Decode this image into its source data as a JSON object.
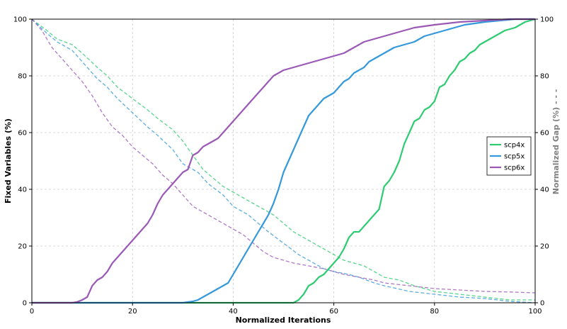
{
  "chart_data": {
    "type": "line",
    "xlabel": "Normalized Iterations",
    "ylabel_left": "Fixed Variables (%)",
    "ylabel_right": "Normalized Gap (%) - - -",
    "xlim": [
      0,
      100
    ],
    "ylim_left": [
      0,
      100
    ],
    "ylim_right": [
      0,
      100
    ],
    "x_ticks": [
      0,
      20,
      40,
      60,
      80,
      100
    ],
    "y_ticks": [
      0,
      20,
      40,
      60,
      80,
      100
    ],
    "grid": true,
    "legend_position": "center-right",
    "series": [
      {
        "name": "scp4x",
        "color": "#2ecc71",
        "fixed_variables": [
          [
            0,
            0
          ],
          [
            10,
            0
          ],
          [
            20,
            0
          ],
          [
            30,
            0
          ],
          [
            40,
            0
          ],
          [
            45,
            0
          ],
          [
            50,
            0
          ],
          [
            52,
            0
          ],
          [
            53,
            1
          ],
          [
            54,
            3
          ],
          [
            55,
            6
          ],
          [
            56,
            7
          ],
          [
            57,
            9
          ],
          [
            58,
            10
          ],
          [
            59,
            12
          ],
          [
            60,
            14
          ],
          [
            61,
            16
          ],
          [
            62,
            19
          ],
          [
            63,
            23
          ],
          [
            64,
            25
          ],
          [
            65,
            25
          ],
          [
            66,
            27
          ],
          [
            67,
            29
          ],
          [
            68,
            31
          ],
          [
            69,
            33
          ],
          [
            70,
            41
          ],
          [
            71,
            43
          ],
          [
            72,
            46
          ],
          [
            73,
            50
          ],
          [
            74,
            56
          ],
          [
            75,
            60
          ],
          [
            76,
            64
          ],
          [
            77,
            65
          ],
          [
            78,
            68
          ],
          [
            79,
            69
          ],
          [
            80,
            71
          ],
          [
            81,
            76
          ],
          [
            82,
            77
          ],
          [
            83,
            80
          ],
          [
            84,
            82
          ],
          [
            85,
            85
          ],
          [
            86,
            86
          ],
          [
            87,
            88
          ],
          [
            88,
            89
          ],
          [
            89,
            91
          ],
          [
            90,
            92
          ],
          [
            92,
            94
          ],
          [
            94,
            96
          ],
          [
            96,
            97
          ],
          [
            98,
            99
          ],
          [
            100,
            100
          ]
        ],
        "normalized_gap": [
          [
            0,
            100
          ],
          [
            3,
            96
          ],
          [
            5,
            93
          ],
          [
            8,
            91
          ],
          [
            10,
            88
          ],
          [
            13,
            83
          ],
          [
            15,
            80
          ],
          [
            17,
            76
          ],
          [
            20,
            72
          ],
          [
            23,
            68
          ],
          [
            25,
            65
          ],
          [
            28,
            61
          ],
          [
            30,
            57
          ],
          [
            32,
            52
          ],
          [
            34,
            47
          ],
          [
            36,
            44
          ],
          [
            38,
            41
          ],
          [
            40,
            39
          ],
          [
            42,
            37
          ],
          [
            44,
            35
          ],
          [
            46,
            33
          ],
          [
            48,
            31
          ],
          [
            50,
            28
          ],
          [
            52,
            25
          ],
          [
            55,
            22
          ],
          [
            58,
            19
          ],
          [
            60,
            17
          ],
          [
            62,
            15
          ],
          [
            64,
            14
          ],
          [
            66,
            13
          ],
          [
            68,
            11
          ],
          [
            70,
            9
          ],
          [
            73,
            8
          ],
          [
            76,
            6
          ],
          [
            80,
            4
          ],
          [
            85,
            3
          ],
          [
            90,
            2
          ],
          [
            95,
            1
          ],
          [
            100,
            1
          ]
        ]
      },
      {
        "name": "scp5x",
        "color": "#3498db",
        "fixed_variables": [
          [
            0,
            0
          ],
          [
            10,
            0
          ],
          [
            20,
            0
          ],
          [
            30,
            0
          ],
          [
            32,
            0.5
          ],
          [
            33,
            1
          ],
          [
            34,
            2
          ],
          [
            35,
            3
          ],
          [
            36,
            4
          ],
          [
            37,
            5
          ],
          [
            38,
            6
          ],
          [
            39,
            7
          ],
          [
            40,
            10
          ],
          [
            41,
            13
          ],
          [
            42,
            16
          ],
          [
            43,
            19
          ],
          [
            44,
            22
          ],
          [
            45,
            25
          ],
          [
            46,
            28
          ],
          [
            47,
            31
          ],
          [
            48,
            35
          ],
          [
            49,
            40
          ],
          [
            50,
            46
          ],
          [
            51,
            50
          ],
          [
            52,
            54
          ],
          [
            53,
            58
          ],
          [
            54,
            62
          ],
          [
            55,
            66
          ],
          [
            56,
            68
          ],
          [
            57,
            70
          ],
          [
            58,
            72
          ],
          [
            59,
            73
          ],
          [
            60,
            74
          ],
          [
            61,
            76
          ],
          [
            62,
            78
          ],
          [
            63,
            79
          ],
          [
            64,
            81
          ],
          [
            65,
            82
          ],
          [
            66,
            83
          ],
          [
            67,
            85
          ],
          [
            68,
            86
          ],
          [
            69,
            87
          ],
          [
            70,
            88
          ],
          [
            71,
            89
          ],
          [
            72,
            90
          ],
          [
            74,
            91
          ],
          [
            76,
            92
          ],
          [
            78,
            94
          ],
          [
            80,
            95
          ],
          [
            82,
            96
          ],
          [
            84,
            97
          ],
          [
            86,
            98
          ],
          [
            88,
            98.5
          ],
          [
            90,
            99
          ],
          [
            93,
            99.5
          ],
          [
            96,
            100
          ],
          [
            100,
            100
          ]
        ],
        "normalized_gap": [
          [
            0,
            100
          ],
          [
            3,
            95
          ],
          [
            5,
            92
          ],
          [
            8,
            89
          ],
          [
            10,
            85
          ],
          [
            13,
            79
          ],
          [
            15,
            76
          ],
          [
            17,
            72
          ],
          [
            20,
            67
          ],
          [
            23,
            62
          ],
          [
            25,
            59
          ],
          [
            28,
            54
          ],
          [
            30,
            49
          ],
          [
            33,
            46
          ],
          [
            35,
            42
          ],
          [
            38,
            38
          ],
          [
            40,
            34
          ],
          [
            43,
            31
          ],
          [
            45,
            28
          ],
          [
            47,
            25
          ],
          [
            50,
            21
          ],
          [
            53,
            17
          ],
          [
            55,
            15
          ],
          [
            58,
            12
          ],
          [
            60,
            11
          ],
          [
            63,
            10
          ],
          [
            65,
            9
          ],
          [
            68,
            7
          ],
          [
            70,
            6
          ],
          [
            75,
            4
          ],
          [
            80,
            3
          ],
          [
            85,
            2
          ],
          [
            90,
            1.5
          ],
          [
            95,
            0.5
          ],
          [
            100,
            0
          ]
        ]
      },
      {
        "name": "scp6x",
        "color": "#9b59b6",
        "fixed_variables": [
          [
            0,
            0
          ],
          [
            8,
            0
          ],
          [
            9,
            0.3
          ],
          [
            10,
            1
          ],
          [
            11,
            2
          ],
          [
            12,
            6
          ],
          [
            13,
            8
          ],
          [
            14,
            9
          ],
          [
            15,
            11
          ],
          [
            16,
            14
          ],
          [
            17,
            16
          ],
          [
            18,
            18
          ],
          [
            19,
            20
          ],
          [
            20,
            22
          ],
          [
            21,
            24
          ],
          [
            22,
            26
          ],
          [
            23,
            28
          ],
          [
            24,
            31
          ],
          [
            25,
            35
          ],
          [
            26,
            38
          ],
          [
            27,
            40
          ],
          [
            28,
            42
          ],
          [
            29,
            44
          ],
          [
            30,
            46
          ],
          [
            31,
            47
          ],
          [
            32,
            52
          ],
          [
            33,
            53
          ],
          [
            34,
            55
          ],
          [
            35,
            56
          ],
          [
            36,
            57
          ],
          [
            37,
            58
          ],
          [
            38,
            60
          ],
          [
            39,
            62
          ],
          [
            40,
            64
          ],
          [
            41,
            66
          ],
          [
            42,
            68
          ],
          [
            43,
            70
          ],
          [
            44,
            72
          ],
          [
            45,
            74
          ],
          [
            46,
            76
          ],
          [
            47,
            78
          ],
          [
            48,
            80
          ],
          [
            49,
            81
          ],
          [
            50,
            82
          ],
          [
            52,
            83
          ],
          [
            54,
            84
          ],
          [
            56,
            85
          ],
          [
            58,
            86
          ],
          [
            60,
            87
          ],
          [
            62,
            88
          ],
          [
            64,
            90
          ],
          [
            66,
            92
          ],
          [
            68,
            93
          ],
          [
            70,
            94
          ],
          [
            72,
            95
          ],
          [
            74,
            96
          ],
          [
            76,
            97
          ],
          [
            80,
            98
          ],
          [
            85,
            99
          ],
          [
            90,
            99.5
          ],
          [
            95,
            100
          ],
          [
            100,
            100
          ]
        ],
        "normalized_gap": [
          [
            0,
            100
          ],
          [
            2,
            96
          ],
          [
            4,
            90
          ],
          [
            6,
            86
          ],
          [
            8,
            82
          ],
          [
            10,
            78
          ],
          [
            12,
            73
          ],
          [
            14,
            67
          ],
          [
            16,
            62
          ],
          [
            18,
            59
          ],
          [
            20,
            55
          ],
          [
            22,
            52
          ],
          [
            24,
            49
          ],
          [
            26,
            45
          ],
          [
            28,
            42
          ],
          [
            30,
            38
          ],
          [
            32,
            34
          ],
          [
            34,
            32
          ],
          [
            36,
            30
          ],
          [
            38,
            28
          ],
          [
            40,
            26
          ],
          [
            42,
            24
          ],
          [
            44,
            21
          ],
          [
            46,
            18
          ],
          [
            48,
            16
          ],
          [
            50,
            15
          ],
          [
            52,
            14
          ],
          [
            55,
            13
          ],
          [
            58,
            12
          ],
          [
            60,
            11
          ],
          [
            62,
            10
          ],
          [
            65,
            9
          ],
          [
            68,
            8
          ],
          [
            70,
            7
          ],
          [
            75,
            6
          ],
          [
            80,
            5
          ],
          [
            85,
            4.5
          ],
          [
            90,
            4
          ],
          [
            95,
            3.8
          ],
          [
            100,
            3.5
          ]
        ]
      }
    ]
  }
}
